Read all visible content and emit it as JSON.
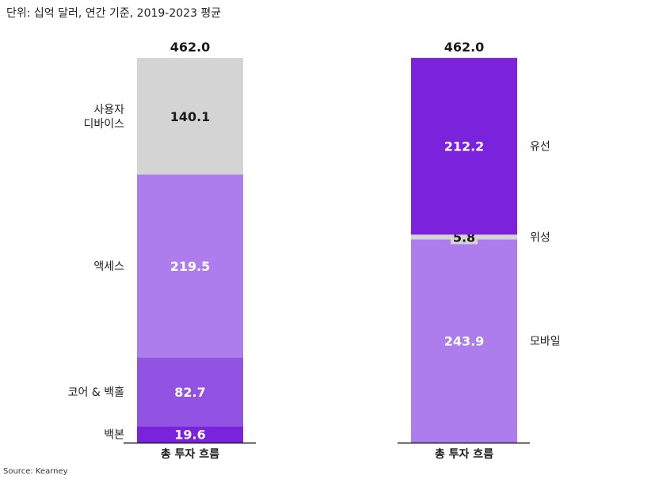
{
  "unit_note": "단위: 십억 달러, 연간 기준,  2019-2023 평균",
  "source": "Source: Kearney",
  "chart_data": [
    {
      "type": "bar",
      "stacked": true,
      "category": "총 투자 흐름",
      "total": "462.0",
      "total_value": 462.0,
      "label_side": "left",
      "segments": [
        {
          "name": "백본",
          "value": 19.6,
          "label": "19.6",
          "color": "#7b22dd",
          "text_color": "#ffffff"
        },
        {
          "name": "코어 & 백홀",
          "value": 82.7,
          "label": "82.7",
          "color": "#9353e2",
          "text_color": "#ffffff"
        },
        {
          "name": "액세스",
          "value": 219.5,
          "label": "219.5",
          "color": "#ae7ded",
          "text_color": "#ffffff"
        },
        {
          "name": "사용자\n디바이스",
          "value": 140.1,
          "label": "140.1",
          "color": "#d4d4d4",
          "text_color": "#1a1a1a"
        }
      ]
    },
    {
      "type": "bar",
      "stacked": true,
      "category": "총 투자 흐름",
      "total": "462.0",
      "total_value": 462.0,
      "label_side": "right",
      "segments": [
        {
          "name": "모바일",
          "value": 243.9,
          "label": "243.9",
          "color": "#ae7ded",
          "text_color": "#ffffff"
        },
        {
          "name": "위성",
          "value": 5.8,
          "label": "5.8",
          "color": "#d4d4d4",
          "text_color": "#1a1a1a"
        },
        {
          "name": "유선",
          "value": 212.2,
          "label": "212.2",
          "color": "#7b22dd",
          "text_color": "#ffffff"
        }
      ]
    }
  ]
}
